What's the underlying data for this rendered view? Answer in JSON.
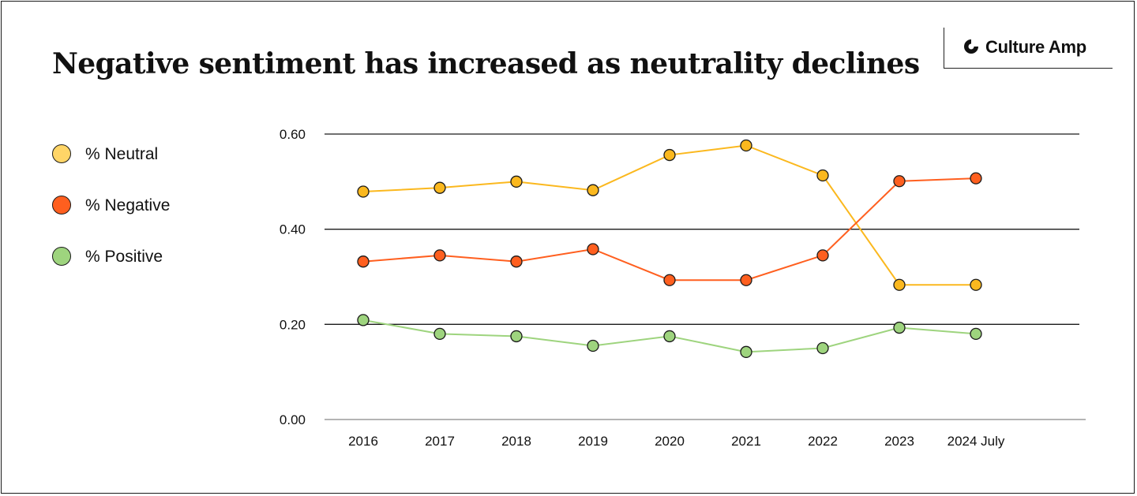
{
  "title": "Negative sentiment has increased as neutrality declines",
  "logo": {
    "text": "Culture Amp"
  },
  "colors": {
    "neutral": "#FFD567",
    "neutral_marker": "#FBB81E",
    "negative": "#FF5F1F",
    "positive": "#9ED47E",
    "grid": "#1a1a1a"
  },
  "chart_data": {
    "type": "line",
    "title": "Negative sentiment has increased as neutrality declines",
    "xlabel": "",
    "ylabel": "",
    "categories": [
      "2016",
      "2017",
      "2018",
      "2019",
      "2020",
      "2021",
      "2022",
      "2023",
      "2024 July"
    ],
    "ylim": [
      0,
      0.6
    ],
    "yticks": [
      "0.00",
      "0.20",
      "0.40",
      "0.60"
    ],
    "grid": true,
    "legend_position": "left",
    "series": [
      {
        "name": "% Neutral",
        "color": "#FBB81E",
        "legend_color": "#FFD567",
        "values": [
          0.479,
          0.487,
          0.5,
          0.482,
          0.556,
          0.576,
          0.513,
          0.283,
          0.283
        ]
      },
      {
        "name": "% Negative",
        "color": "#FF5F1F",
        "legend_color": "#FF5F1F",
        "values": [
          0.332,
          0.345,
          0.332,
          0.358,
          0.293,
          0.293,
          0.345,
          0.501,
          0.507
        ]
      },
      {
        "name": "% Positive",
        "color": "#9ED47E",
        "legend_color": "#9ED47E",
        "values": [
          0.209,
          0.18,
          0.175,
          0.155,
          0.175,
          0.142,
          0.15,
          0.193,
          0.18
        ]
      }
    ]
  }
}
